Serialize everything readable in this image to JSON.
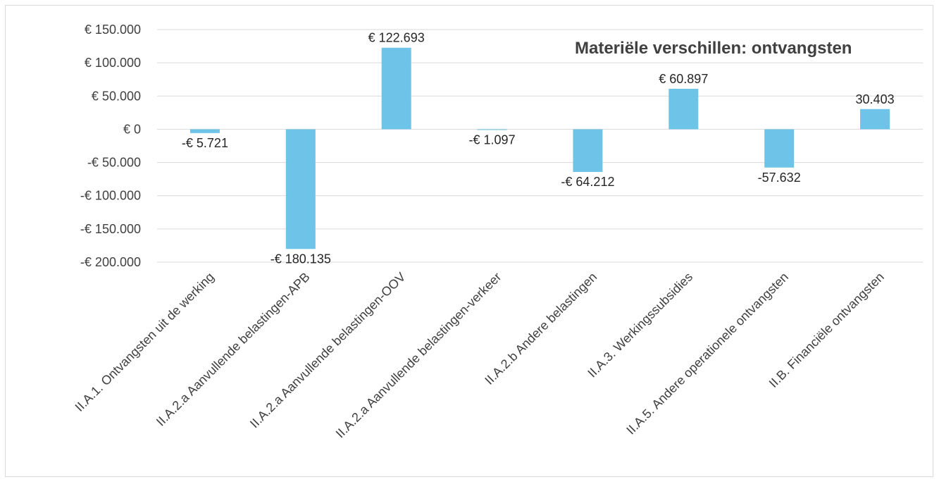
{
  "chart_data": {
    "type": "bar",
    "title": "Materiële verschillen: ontvangsten",
    "categories": [
      "II.A.1. Ontvangsten uit de werking",
      "II.A.2.a Aanvullende belastingen-APB",
      "II.A.2.a Aanvullende belastingen-OOV",
      "II.A.2.a Aanvullende belastingen-verkeer",
      "II.A.2.b Andere belastingen",
      "II.A.3. Werkingssubsidies",
      "II.A.5. Andere operationele ontvangsten",
      "II.B. Financiële ontvangsten"
    ],
    "values": [
      -5721,
      -180135,
      122693,
      -1097,
      -64212,
      60897,
      -57632,
      30403
    ],
    "data_labels": [
      "-€ 5.721",
      "-€ 180.135",
      "€ 122.693",
      "-€ 1.097",
      "-€ 64.212",
      "€ 60.897",
      "-57.632",
      "30.403"
    ],
    "ylim": [
      -200000,
      150000
    ],
    "yticks": [
      150000,
      100000,
      50000,
      0,
      -50000,
      -100000,
      -150000,
      -200000
    ],
    "ytick_labels": [
      "€ 150.000",
      "€ 100.000",
      "€ 50.000",
      "€ 0",
      "-€ 50.000",
      "-€ 100.000",
      "-€ 150.000",
      "-€ 200.000"
    ],
    "xlabel": "",
    "ylabel": "",
    "grid": true,
    "bar_color": "#6ec4e8",
    "grid_color": "#d9d9d9"
  }
}
